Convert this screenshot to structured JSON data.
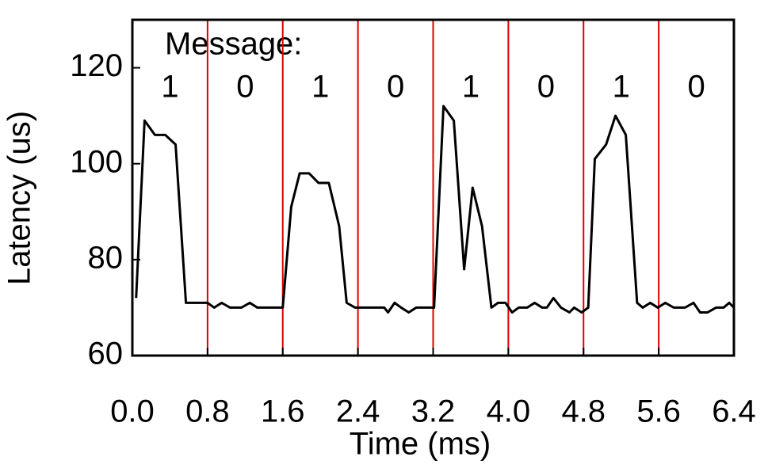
{
  "chart_data": {
    "type": "line",
    "x_label": "Time (ms)",
    "y_label": "Latency (us)",
    "annotation": "Message:",
    "message_bits": [
      "1",
      "0",
      "1",
      "0",
      "1",
      "0",
      "1",
      "0"
    ],
    "message_boundaries": [
      0.8,
      1.6,
      2.4,
      3.2,
      4.0,
      4.8,
      5.6
    ],
    "boundary_color": "#e00000",
    "xlim": [
      0,
      6.4
    ],
    "xticks": [
      {
        "value": 0,
        "label": "0.0"
      },
      0.8,
      1.6,
      2.4,
      3.2,
      {
        "value": 4.0,
        "label": "4.0"
      },
      4.8,
      5.6,
      6.4
    ],
    "ylim": [
      60,
      130
    ],
    "yticks": [
      60,
      80,
      100,
      120
    ],
    "series": [
      {
        "name": "Latency",
        "color": "#000000",
        "x": [
          0.04,
          0.13,
          0.24,
          0.35,
          0.46,
          0.57,
          0.8,
          0.87,
          0.95,
          1.04,
          1.16,
          1.25,
          1.33,
          1.6,
          1.69,
          1.78,
          1.88,
          1.98,
          2.09,
          2.2,
          2.28,
          2.37,
          2.68,
          2.72,
          2.79,
          2.86,
          2.94,
          3.02,
          3.21,
          3.31,
          3.42,
          3.53,
          3.62,
          3.72,
          3.82,
          3.89,
          3.97,
          4.04,
          4.11,
          4.2,
          4.28,
          4.36,
          4.41,
          4.48,
          4.56,
          4.65,
          4.7,
          4.78,
          4.85,
          4.92,
          5.04,
          5.14,
          5.25,
          5.37,
          5.43,
          5.51,
          5.59,
          5.67,
          5.76,
          5.88,
          5.97,
          6.04,
          6.12,
          6.21,
          6.29,
          6.35,
          6.4
        ],
        "values": [
          72,
          109,
          106,
          106,
          104,
          71,
          71,
          70,
          71,
          70,
          70,
          71,
          70,
          70,
          91,
          98,
          98,
          96,
          96,
          87,
          71,
          70,
          70,
          69,
          71,
          70,
          69,
          70,
          70,
          112,
          109,
          78,
          95,
          87,
          70,
          71,
          71,
          69,
          70,
          70,
          71,
          70,
          70,
          72,
          70,
          69,
          70,
          69,
          70,
          101,
          104,
          110,
          106,
          71,
          70,
          71,
          70,
          71,
          70,
          70,
          71,
          69,
          69,
          70,
          70,
          71,
          70
        ]
      }
    ]
  }
}
